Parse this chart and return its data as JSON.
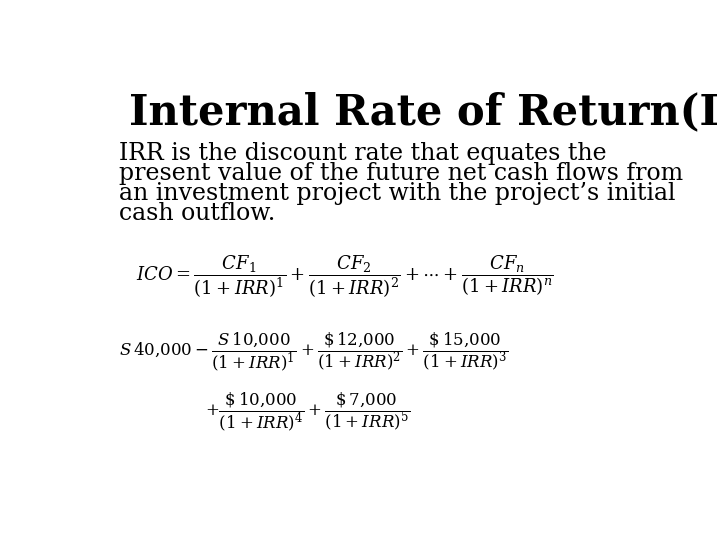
{
  "title": "Internal Rate of Return(IRR)",
  "background_color": "#ffffff",
  "text_color": "#000000",
  "body_line1": "IRR is the discount rate that equates the",
  "body_line2": "present value of the future net cash flows from",
  "body_line3": "an investment project with the project’s initial",
  "body_line4": "cash outflow.",
  "title_fontsize": 30,
  "body_fontsize": 17,
  "formula1_fontsize": 13,
  "formula2_fontsize": 12
}
